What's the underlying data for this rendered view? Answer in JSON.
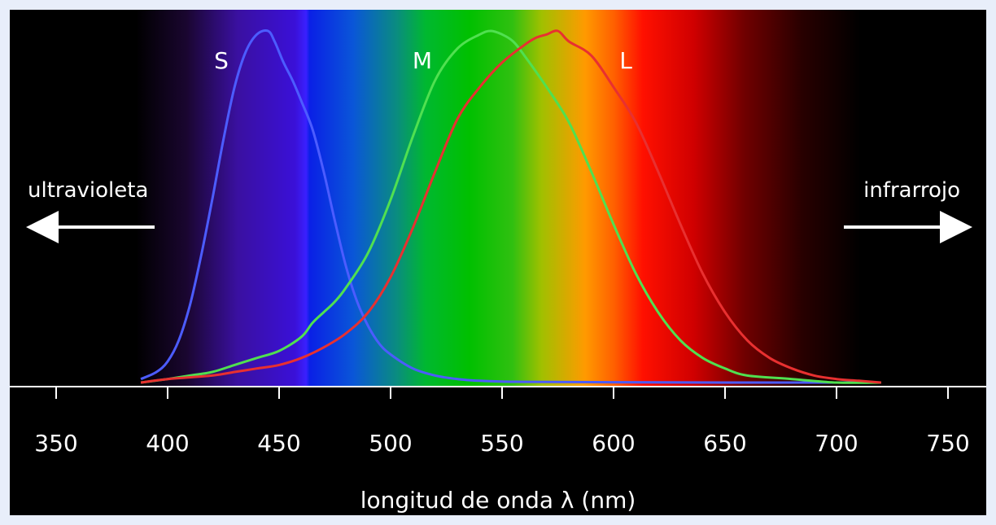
{
  "chart_data": {
    "type": "line",
    "xlabel": "longitud de onda λ (nm)",
    "xticks": [
      350,
      400,
      450,
      500,
      550,
      600,
      650,
      700,
      750
    ],
    "xlim": [
      325,
      775
    ],
    "ylim": [
      0,
      1
    ],
    "grid": false,
    "background": "visible spectrum gradient (violet to red) on black",
    "annotations": {
      "left": "ultravioleta",
      "right": "infrarrojo"
    },
    "series": [
      {
        "name": "S",
        "color": "#4c5cff",
        "x": [
          388,
          395,
          400,
          405,
          410,
          415,
          420,
          425,
          430,
          435,
          440,
          445,
          448,
          452,
          456,
          460,
          465,
          470,
          475,
          480,
          485,
          490,
          495,
          500,
          510,
          520,
          530,
          540,
          550,
          560,
          600,
          650,
          700,
          720
        ],
        "y": [
          0.01,
          0.03,
          0.06,
          0.12,
          0.22,
          0.36,
          0.52,
          0.69,
          0.84,
          0.94,
          0.99,
          1.0,
          0.97,
          0.91,
          0.86,
          0.8,
          0.72,
          0.6,
          0.46,
          0.33,
          0.23,
          0.16,
          0.11,
          0.08,
          0.04,
          0.02,
          0.01,
          0.005,
          0.003,
          0.002,
          0.001,
          0.0,
          0.0,
          0.0
        ]
      },
      {
        "name": "M",
        "color": "#50e050",
        "x": [
          388,
          400,
          410,
          420,
          430,
          440,
          450,
          460,
          465,
          470,
          475,
          480,
          490,
          500,
          510,
          520,
          530,
          540,
          545,
          550,
          555,
          560,
          570,
          580,
          590,
          600,
          610,
          620,
          630,
          640,
          650,
          660,
          680,
          700,
          720
        ],
        "y": [
          0.0,
          0.01,
          0.02,
          0.03,
          0.05,
          0.07,
          0.09,
          0.13,
          0.17,
          0.2,
          0.23,
          0.27,
          0.37,
          0.52,
          0.7,
          0.86,
          0.95,
          0.99,
          1.0,
          0.99,
          0.97,
          0.93,
          0.84,
          0.74,
          0.6,
          0.45,
          0.31,
          0.2,
          0.12,
          0.07,
          0.04,
          0.02,
          0.01,
          0.0,
          0.0
        ]
      },
      {
        "name": "L",
        "color": "#e83030",
        "x": [
          388,
          400,
          420,
          430,
          440,
          450,
          460,
          470,
          480,
          490,
          500,
          510,
          520,
          530,
          540,
          550,
          560,
          565,
          570,
          575,
          580,
          590,
          600,
          610,
          620,
          630,
          640,
          650,
          660,
          670,
          680,
          690,
          700,
          710,
          720
        ],
        "y": [
          0.0,
          0.01,
          0.02,
          0.03,
          0.04,
          0.05,
          0.07,
          0.1,
          0.14,
          0.2,
          0.3,
          0.44,
          0.6,
          0.75,
          0.84,
          0.91,
          0.96,
          0.98,
          0.99,
          1.0,
          0.97,
          0.93,
          0.84,
          0.74,
          0.6,
          0.45,
          0.31,
          0.2,
          0.12,
          0.07,
          0.04,
          0.02,
          0.01,
          0.005,
          0.0
        ]
      }
    ]
  }
}
